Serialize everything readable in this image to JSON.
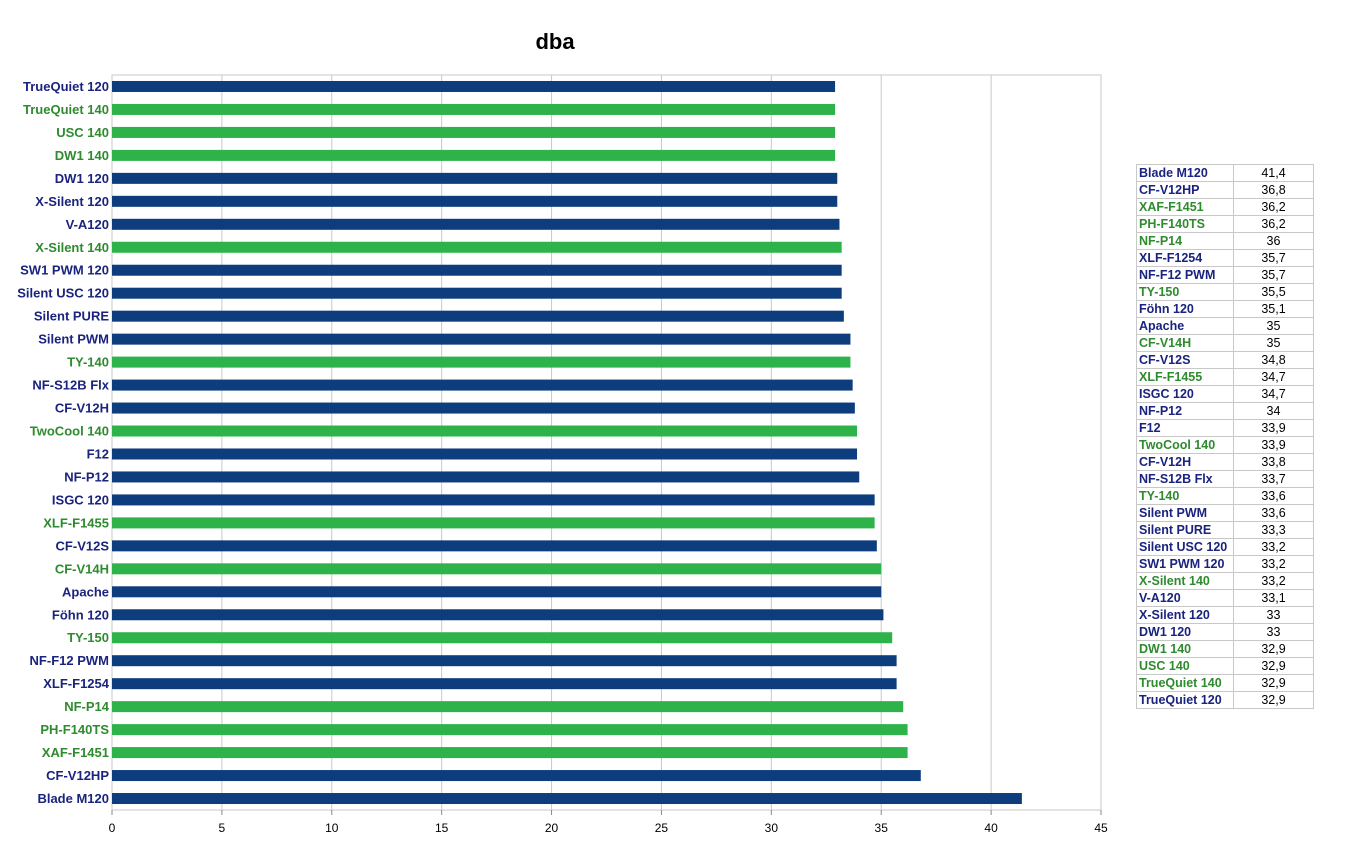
{
  "colors": {
    "navy": "#0d3d7c",
    "green": "#2db34a",
    "navy_text": "#1a237e",
    "green_text": "#2e8b2e",
    "grid": "#c8c8c8"
  },
  "chart_data": {
    "type": "bar",
    "orientation": "horizontal",
    "title": "dba",
    "xlim": [
      0,
      45
    ],
    "x_ticks": [
      "0",
      "5",
      "10",
      "15",
      "20",
      "25",
      "30",
      "35",
      "40",
      "45"
    ],
    "grid": "vertical, major only",
    "legend": "none",
    "categories": [
      "TrueQuiet 120",
      "TrueQuiet 140",
      "USC 140",
      "DW1 140",
      "DW1 120",
      "X-Silent 120",
      "V-A120",
      "X-Silent 140",
      "SW1 PWM 120",
      "Silent USC 120",
      "Silent PURE",
      "Silent PWM",
      "TY-140",
      "NF-S12B Flx",
      "CF-V12H",
      "TwoCool 140",
      "F12",
      "NF-P12",
      "ISGC 120",
      "XLF-F1455",
      "CF-V12S",
      "CF-V14H",
      "Apache",
      "Föhn 120",
      "TY-150",
      "NF-F12 PWM",
      "XLF-F1254",
      "NF-P14",
      "PH-F140TS",
      "XAF-F1451",
      "CF-V12HP",
      "Blade M120"
    ],
    "values": [
      32.9,
      32.9,
      32.9,
      32.9,
      33,
      33,
      33.1,
      33.2,
      33.2,
      33.2,
      33.3,
      33.6,
      33.6,
      33.7,
      33.8,
      33.9,
      33.9,
      34,
      34.7,
      34.7,
      34.8,
      35,
      35,
      35.1,
      35.5,
      35.7,
      35.7,
      36,
      36.2,
      36.2,
      36.8,
      41.4
    ],
    "bar_colors": [
      "navy",
      "green",
      "green",
      "green",
      "navy",
      "navy",
      "navy",
      "green",
      "navy",
      "navy",
      "navy",
      "navy",
      "green",
      "navy",
      "navy",
      "green",
      "navy",
      "navy",
      "navy",
      "green",
      "navy",
      "green",
      "navy",
      "navy",
      "green",
      "navy",
      "navy",
      "green",
      "green",
      "green",
      "navy",
      "navy"
    ]
  },
  "table": {
    "rows": [
      {
        "name": "Blade M120",
        "value": "41,4",
        "color": "navy"
      },
      {
        "name": "CF-V12HP",
        "value": "36,8",
        "color": "navy"
      },
      {
        "name": "XAF-F1451",
        "value": "36,2",
        "color": "green"
      },
      {
        "name": "PH-F140TS",
        "value": "36,2",
        "color": "green"
      },
      {
        "name": "NF-P14",
        "value": "36",
        "color": "green"
      },
      {
        "name": "XLF-F1254",
        "value": "35,7",
        "color": "navy"
      },
      {
        "name": "NF-F12 PWM",
        "value": "35,7",
        "color": "navy"
      },
      {
        "name": "TY-150",
        "value": "35,5",
        "color": "green"
      },
      {
        "name": "Föhn 120",
        "value": "35,1",
        "color": "navy"
      },
      {
        "name": "Apache",
        "value": "35",
        "color": "navy"
      },
      {
        "name": "CF-V14H",
        "value": "35",
        "color": "green"
      },
      {
        "name": "CF-V12S",
        "value": "34,8",
        "color": "navy"
      },
      {
        "name": "XLF-F1455",
        "value": "34,7",
        "color": "green"
      },
      {
        "name": "ISGC 120",
        "value": "34,7",
        "color": "navy"
      },
      {
        "name": "NF-P12",
        "value": "34",
        "color": "navy"
      },
      {
        "name": "F12",
        "value": "33,9",
        "color": "navy"
      },
      {
        "name": "TwoCool 140",
        "value": "33,9",
        "color": "green"
      },
      {
        "name": "CF-V12H",
        "value": "33,8",
        "color": "navy"
      },
      {
        "name": "NF-S12B Flx",
        "value": "33,7",
        "color": "navy"
      },
      {
        "name": "TY-140",
        "value": "33,6",
        "color": "green"
      },
      {
        "name": "Silent PWM",
        "value": "33,6",
        "color": "navy"
      },
      {
        "name": "Silent PURE",
        "value": "33,3",
        "color": "navy"
      },
      {
        "name": "Silent USC 120",
        "value": "33,2",
        "color": "navy"
      },
      {
        "name": "SW1 PWM 120",
        "value": "33,2",
        "color": "navy"
      },
      {
        "name": "X-Silent 140",
        "value": "33,2",
        "color": "green"
      },
      {
        "name": "V-A120",
        "value": "33,1",
        "color": "navy"
      },
      {
        "name": "X-Silent 120",
        "value": "33",
        "color": "navy"
      },
      {
        "name": "DW1 120",
        "value": "33",
        "color": "navy"
      },
      {
        "name": "DW1 140",
        "value": "32,9",
        "color": "green"
      },
      {
        "name": "USC 140",
        "value": "32,9",
        "color": "green"
      },
      {
        "name": "TrueQuiet 140",
        "value": "32,9",
        "color": "green"
      },
      {
        "name": "TrueQuiet 120",
        "value": "32,9",
        "color": "navy"
      }
    ]
  }
}
